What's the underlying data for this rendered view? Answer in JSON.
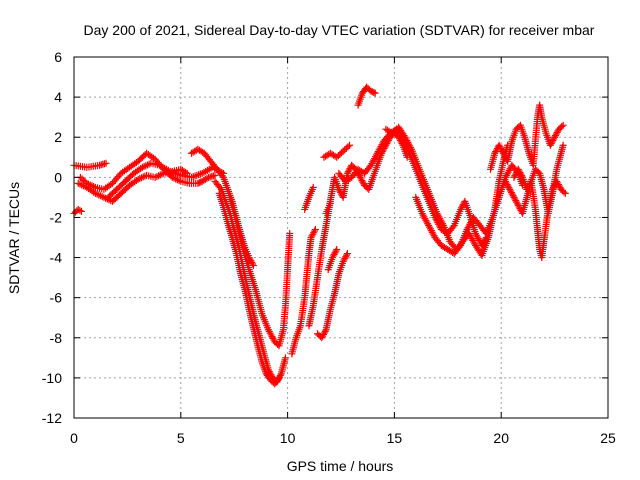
{
  "chart_data": {
    "type": "scatter",
    "title": "Day 200 of 2021, Sidereal Day-to-day VTEC variation (SDTVAR) for receiver mbar",
    "xlabel": "GPS time / hours",
    "ylabel": "SDTVAR / TECUs",
    "xlim": [
      0,
      25
    ],
    "ylim": [
      -12,
      6
    ],
    "xticks": [
      0,
      5,
      10,
      15,
      20,
      25
    ],
    "yticks": [
      -12,
      -10,
      -8,
      -6,
      -4,
      -2,
      0,
      2,
      4,
      6
    ],
    "grid": true,
    "marker": "+",
    "color": "#ff0000",
    "series": [
      {
        "values": [
          [
            0.0,
            0.6
          ],
          [
            0.3,
            0.55
          ],
          [
            0.6,
            0.5
          ],
          [
            0.9,
            0.55
          ],
          [
            1.2,
            0.6
          ],
          [
            1.5,
            0.7
          ]
        ]
      },
      {
        "values": [
          [
            0.0,
            -1.8
          ],
          [
            0.2,
            -1.6
          ],
          [
            0.35,
            -1.7
          ]
        ]
      },
      {
        "values": [
          [
            0.2,
            -0.3
          ],
          [
            0.6,
            -0.5
          ],
          [
            1.0,
            -0.8
          ],
          [
            1.4,
            -1.0
          ],
          [
            1.8,
            -1.2
          ],
          [
            2.2,
            -0.8
          ],
          [
            2.6,
            -0.4
          ],
          [
            3.0,
            -0.1
          ],
          [
            3.4,
            0.1
          ],
          [
            3.8,
            0.0
          ],
          [
            4.2,
            0.2
          ],
          [
            4.6,
            0.3
          ],
          [
            5.0,
            0.4
          ],
          [
            5.3,
            0.2
          ]
        ]
      },
      {
        "values": [
          [
            0.3,
            0.0
          ],
          [
            0.6,
            -0.3
          ],
          [
            1.0,
            -0.5
          ],
          [
            1.4,
            -0.6
          ],
          [
            1.8,
            -0.3
          ],
          [
            2.2,
            0.2
          ],
          [
            2.6,
            0.5
          ],
          [
            3.0,
            0.8
          ],
          [
            3.4,
            1.2
          ],
          [
            3.8,
            0.9
          ],
          [
            4.2,
            0.4
          ],
          [
            4.6,
            0.0
          ],
          [
            5.0,
            -0.2
          ],
          [
            5.4,
            -0.3
          ],
          [
            5.8,
            -0.3
          ],
          [
            6.0,
            -0.2
          ],
          [
            6.3,
            0.0
          ],
          [
            6.6,
            0.1
          ]
        ]
      },
      {
        "values": [
          [
            1.6,
            -1.0
          ],
          [
            2.0,
            -0.6
          ],
          [
            2.4,
            -0.2
          ],
          [
            2.8,
            0.2
          ],
          [
            3.2,
            0.5
          ],
          [
            3.6,
            0.7
          ],
          [
            4.0,
            0.6
          ],
          [
            4.5,
            0.3
          ],
          [
            5.0,
            0.1
          ],
          [
            5.5,
            0.0
          ],
          [
            6.0,
            0.2
          ],
          [
            6.5,
            0.5
          ],
          [
            7.0,
            0.2
          ]
        ]
      },
      {
        "values": [
          [
            5.5,
            1.2
          ],
          [
            5.8,
            1.4
          ],
          [
            6.1,
            1.2
          ],
          [
            6.4,
            0.8
          ],
          [
            6.7,
            0.4
          ],
          [
            7.0,
            0.0
          ],
          [
            7.2,
            -0.6
          ],
          [
            7.4,
            -1.2
          ],
          [
            7.6,
            -2.0
          ],
          [
            7.8,
            -2.8
          ],
          [
            8.0,
            -3.5
          ],
          [
            8.2,
            -4.0
          ],
          [
            8.4,
            -4.4
          ]
        ]
      },
      {
        "values": [
          [
            6.6,
            -0.2
          ],
          [
            6.9,
            -0.6
          ],
          [
            7.1,
            -1.2
          ],
          [
            7.3,
            -1.8
          ],
          [
            7.5,
            -2.6
          ],
          [
            7.7,
            -3.4
          ],
          [
            7.9,
            -4.4
          ],
          [
            8.1,
            -5.4
          ],
          [
            8.3,
            -6.3
          ],
          [
            8.5,
            -7.2
          ],
          [
            8.7,
            -8.0
          ],
          [
            8.9,
            -8.8
          ],
          [
            9.1,
            -9.6
          ],
          [
            9.3,
            -10.0
          ],
          [
            9.5,
            -10.2
          ],
          [
            9.7,
            -9.8
          ],
          [
            9.9,
            -9.0
          ]
        ]
      },
      {
        "values": [
          [
            6.8,
            -0.8
          ],
          [
            7.0,
            -1.5
          ],
          [
            7.2,
            -2.3
          ],
          [
            7.4,
            -3.0
          ],
          [
            7.6,
            -3.8
          ],
          [
            7.8,
            -4.8
          ],
          [
            8.0,
            -5.6
          ],
          [
            8.2,
            -6.6
          ],
          [
            8.4,
            -7.5
          ],
          [
            8.6,
            -8.4
          ],
          [
            8.8,
            -9.2
          ],
          [
            9.0,
            -9.8
          ],
          [
            9.2,
            -10.1
          ],
          [
            9.4,
            -10.3
          ],
          [
            9.6,
            -10.0
          ]
        ]
      },
      {
        "values": [
          [
            7.3,
            -1.0
          ],
          [
            7.6,
            -2.2
          ],
          [
            7.9,
            -3.5
          ],
          [
            8.2,
            -4.6
          ],
          [
            8.5,
            -5.6
          ],
          [
            8.8,
            -6.8
          ],
          [
            9.1,
            -7.6
          ],
          [
            9.4,
            -8.2
          ],
          [
            9.6,
            -8.4
          ],
          [
            9.8,
            -7.6
          ],
          [
            9.9,
            -6.4
          ],
          [
            10.0,
            -4.6
          ],
          [
            10.1,
            -2.8
          ]
        ]
      },
      {
        "values": [
          [
            10.2,
            -8.8
          ],
          [
            10.4,
            -8.0
          ],
          [
            10.6,
            -7.4
          ],
          [
            10.8,
            -6.0
          ],
          [
            11.0,
            -3.8
          ],
          [
            11.1,
            -3.0
          ],
          [
            11.3,
            -2.6
          ]
        ]
      },
      {
        "values": [
          [
            11.0,
            -7.4
          ],
          [
            11.2,
            -6.4
          ],
          [
            11.4,
            -5.0
          ],
          [
            11.6,
            -3.6
          ],
          [
            11.8,
            -2.4
          ],
          [
            12.0,
            -1.2
          ],
          [
            12.2,
            0.0
          ],
          [
            12.4,
            -0.6
          ],
          [
            12.6,
            -1.0
          ],
          [
            12.8,
            0.2
          ],
          [
            13.0,
            0.6
          ],
          [
            13.2,
            0.4
          ],
          [
            13.4,
            0.0
          ],
          [
            13.6,
            -0.4
          ],
          [
            13.8,
            -0.6
          ],
          [
            14.0,
            0.0
          ],
          [
            14.2,
            0.6
          ],
          [
            14.4,
            1.2
          ],
          [
            14.6,
            1.6
          ],
          [
            14.8,
            2.0
          ],
          [
            15.0,
            2.2
          ],
          [
            15.2,
            2.0
          ],
          [
            15.4,
            1.6
          ],
          [
            15.6,
            1.0
          ]
        ]
      },
      {
        "values": [
          [
            11.4,
            -7.8
          ],
          [
            11.6,
            -8.0
          ],
          [
            11.8,
            -7.6
          ],
          [
            12.0,
            -6.6
          ],
          [
            12.2,
            -5.8
          ],
          [
            12.4,
            -4.8
          ],
          [
            12.6,
            -4.2
          ],
          [
            12.8,
            -3.8
          ]
        ]
      },
      {
        "values": [
          [
            11.7,
            1.0
          ],
          [
            12.0,
            1.2
          ],
          [
            12.3,
            1.0
          ],
          [
            12.6,
            1.3
          ],
          [
            12.9,
            1.6
          ]
        ]
      },
      {
        "values": [
          [
            11.8,
            -1.8
          ],
          [
            12.0,
            -1.3
          ]
        ]
      },
      {
        "values": [
          [
            13.3,
            3.6
          ],
          [
            13.5,
            4.2
          ],
          [
            13.7,
            4.5
          ],
          [
            13.9,
            4.3
          ],
          [
            14.1,
            4.2
          ]
        ]
      },
      {
        "values": [
          [
            11.9,
            -4.6
          ],
          [
            12.1,
            -4.0
          ],
          [
            12.3,
            -3.6
          ]
        ]
      },
      {
        "values": [
          [
            10.8,
            -1.6
          ],
          [
            11.0,
            -1.0
          ],
          [
            11.2,
            -0.5
          ]
        ]
      },
      {
        "values": [
          [
            12.4,
            0.2
          ],
          [
            12.7,
            -0.2
          ],
          [
            13.0,
            0.0
          ],
          [
            13.3,
            0.4
          ],
          [
            13.6,
            0.2
          ],
          [
            13.9,
            0.6
          ],
          [
            14.2,
            1.2
          ],
          [
            14.5,
            1.8
          ],
          [
            14.8,
            2.2
          ],
          [
            15.1,
            2.4
          ],
          [
            15.4,
            2.0
          ],
          [
            15.7,
            1.2
          ],
          [
            16.0,
            0.4
          ],
          [
            16.3,
            -0.4
          ],
          [
            16.6,
            -1.2
          ],
          [
            16.9,
            -2.0
          ],
          [
            17.2,
            -2.6
          ],
          [
            17.5,
            -2.8
          ],
          [
            17.8,
            -2.4
          ],
          [
            18.1,
            -1.6
          ],
          [
            18.3,
            -1.2
          ],
          [
            18.5,
            -1.8
          ],
          [
            18.8,
            -2.8
          ],
          [
            19.1,
            -3.4
          ],
          [
            19.3,
            -3.0
          ]
        ]
      },
      {
        "values": [
          [
            14.6,
            2.4
          ],
          [
            14.9,
            2.2
          ],
          [
            15.2,
            2.5
          ],
          [
            15.5,
            2.0
          ],
          [
            15.8,
            1.4
          ],
          [
            16.1,
            0.6
          ],
          [
            16.4,
            -0.2
          ],
          [
            16.7,
            -1.0
          ],
          [
            17.0,
            -1.8
          ],
          [
            17.3,
            -2.4
          ],
          [
            17.6,
            -3.2
          ],
          [
            17.9,
            -3.6
          ],
          [
            18.2,
            -3.2
          ],
          [
            18.5,
            -2.8
          ],
          [
            18.8,
            -3.4
          ],
          [
            19.1,
            -3.9
          ],
          [
            19.4,
            -3.0
          ],
          [
            19.7,
            -1.6
          ],
          [
            19.9,
            -0.2
          ],
          [
            20.1,
            0.8
          ],
          [
            20.3,
            1.6
          ]
        ]
      },
      {
        "values": [
          [
            16.0,
            -1.0
          ],
          [
            16.3,
            -1.8
          ],
          [
            16.6,
            -2.4
          ],
          [
            16.9,
            -3.0
          ],
          [
            17.2,
            -3.4
          ],
          [
            17.5,
            -3.6
          ],
          [
            17.8,
            -3.8
          ],
          [
            18.1,
            -3.4
          ],
          [
            18.4,
            -2.6
          ],
          [
            18.7,
            -2.0
          ],
          [
            19.0,
            -2.4
          ],
          [
            19.3,
            -2.8
          ],
          [
            19.6,
            -2.0
          ],
          [
            19.9,
            -1.0
          ],
          [
            20.2,
            0.0
          ],
          [
            20.5,
            0.6
          ],
          [
            20.8,
            0.2
          ],
          [
            21.0,
            -0.4
          ]
        ]
      },
      {
        "values": [
          [
            19.5,
            0.4
          ],
          [
            19.7,
            1.2
          ],
          [
            19.9,
            1.6
          ],
          [
            20.1,
            1.2
          ],
          [
            20.3,
            0.8
          ],
          [
            20.5,
            1.8
          ],
          [
            20.7,
            2.4
          ],
          [
            20.9,
            2.6
          ],
          [
            21.1,
            2.0
          ],
          [
            21.3,
            1.2
          ],
          [
            21.5,
            0.6
          ],
          [
            21.7,
            3.0
          ],
          [
            21.8,
            3.6
          ],
          [
            21.9,
            3.0
          ],
          [
            22.1,
            2.2
          ],
          [
            22.3,
            1.6
          ],
          [
            22.5,
            2.0
          ],
          [
            22.7,
            2.4
          ],
          [
            22.9,
            2.6
          ]
        ]
      },
      {
        "values": [
          [
            20.2,
            -0.2
          ],
          [
            20.4,
            -0.6
          ],
          [
            20.6,
            -1.0
          ],
          [
            20.8,
            -1.4
          ],
          [
            21.0,
            -1.8
          ],
          [
            21.2,
            -1.0
          ],
          [
            21.4,
            -0.2
          ],
          [
            21.6,
            -1.6
          ],
          [
            21.7,
            -2.6
          ],
          [
            21.8,
            -3.6
          ],
          [
            21.9,
            -4.0
          ],
          [
            22.0,
            -3.2
          ],
          [
            22.2,
            -1.6
          ],
          [
            22.4,
            -0.6
          ],
          [
            22.6,
            -0.2
          ],
          [
            22.8,
            -0.6
          ],
          [
            23.0,
            -0.8
          ]
        ]
      },
      {
        "values": [
          [
            20.6,
            0.0
          ],
          [
            20.8,
            0.4
          ],
          [
            21.0,
            0.0
          ],
          [
            21.2,
            -0.6
          ],
          [
            21.4,
            -0.2
          ],
          [
            21.6,
            0.4
          ],
          [
            21.8,
            0.2
          ],
          [
            22.0,
            -0.6
          ],
          [
            22.2,
            -1.8
          ],
          [
            22.4,
            -0.8
          ],
          [
            22.6,
            0.4
          ],
          [
            22.8,
            1.2
          ],
          [
            22.9,
            1.6
          ]
        ]
      }
    ]
  }
}
